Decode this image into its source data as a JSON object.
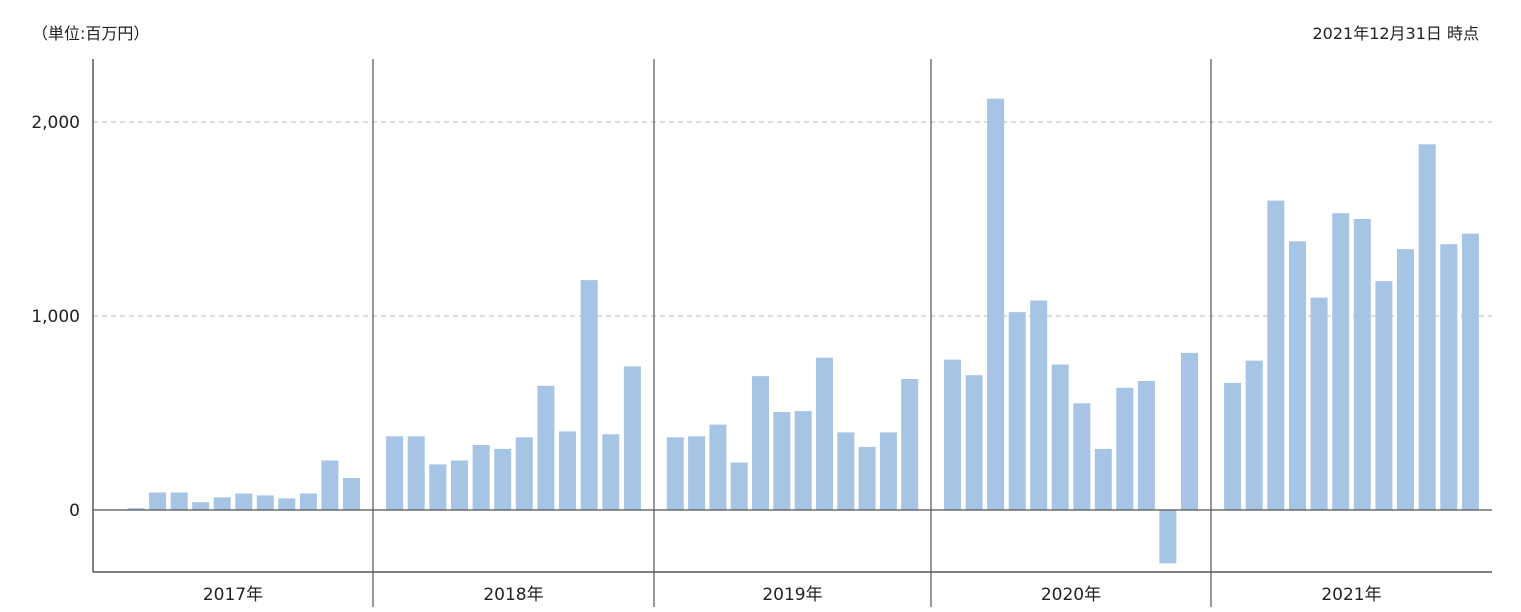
{
  "header": {
    "unit": "（単位:百万円）",
    "as_of": "2021年12月31日 時点"
  },
  "chart_data": {
    "type": "bar",
    "title": "",
    "xlabel": "",
    "ylabel": "",
    "ylim": [
      -310,
      2330
    ],
    "yticks": [
      {
        "value": 0,
        "label": "0"
      },
      {
        "value": 1000,
        "label": "1,000"
      },
      {
        "value": 2000,
        "label": "2,000"
      }
    ],
    "grid": "horizontal dashed at 1,000 and 2,000",
    "colors": {
      "bar": "#a6c4e4",
      "axis": "#555555",
      "grid": "#c8c8c8"
    },
    "groups": [
      {
        "label": "2017年",
        "values": [
          10,
          90,
          90,
          40,
          65,
          85,
          75,
          60,
          85,
          255,
          165
        ]
      },
      {
        "label": "2018年",
        "values": [
          380,
          380,
          235,
          255,
          335,
          315,
          375,
          640,
          405,
          1185,
          390,
          740
        ]
      },
      {
        "label": "2019年",
        "values": [
          375,
          380,
          440,
          245,
          690,
          505,
          510,
          785,
          400,
          325,
          400,
          675
        ]
      },
      {
        "label": "2020年",
        "values": [
          775,
          695,
          2120,
          1020,
          1080,
          750,
          550,
          315,
          630,
          665,
          -275,
          810
        ]
      },
      {
        "label": "2021年",
        "values": [
          655,
          770,
          1595,
          1385,
          1095,
          1530,
          1500,
          1180,
          1345,
          1885,
          1370,
          1425
        ]
      }
    ]
  }
}
